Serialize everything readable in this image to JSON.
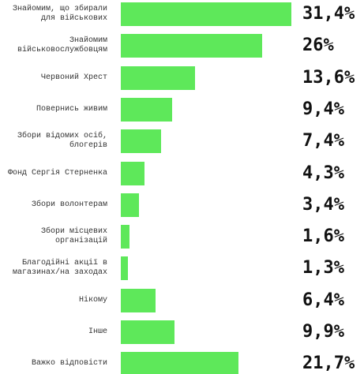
{
  "chart_data": {
    "type": "bar",
    "orientation": "horizontal",
    "color": "#5ee85a",
    "categories": [
      "Знайомим, що збирали для військових",
      "Знайомим військовослужбовцям",
      "Червоний Хрест",
      "Повернись живим",
      "Збори відомих осіб, блогерів",
      "Фонд Сергія Стерненка",
      "Збори волонтерам",
      "Збори місцевих організацій",
      "Благодійні акції в магазинах/на заходах",
      "Нікому",
      "Інше",
      "Важко відповісти"
    ],
    "values": [
      31.4,
      26,
      13.6,
      9.4,
      7.4,
      4.3,
      3.4,
      1.6,
      1.3,
      6.4,
      9.9,
      21.7
    ],
    "value_labels": [
      "31,4%",
      "26%",
      "13,6%",
      "9,4%",
      "7,4%",
      "4,3%",
      "3,4%",
      "1,6%",
      "1,3%",
      "6,4%",
      "9,9%",
      "21,7%"
    ]
  }
}
